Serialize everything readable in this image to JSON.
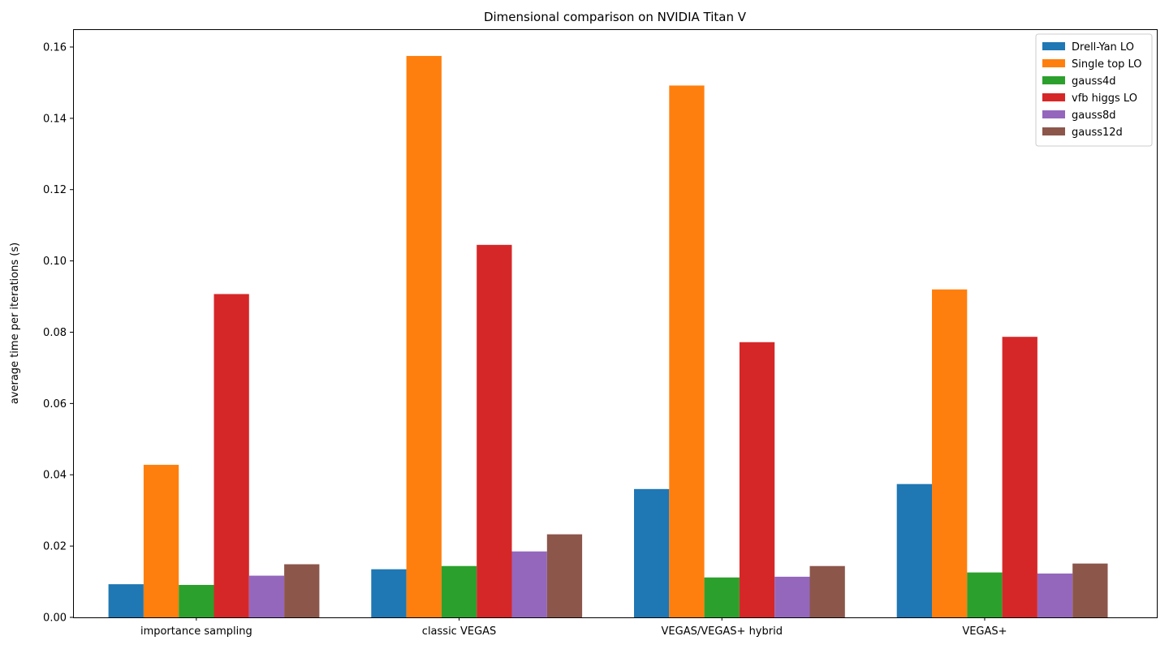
{
  "chart_data": {
    "type": "bar",
    "title": "Dimensional comparison on NVIDIA Titan V",
    "xlabel": "",
    "ylabel": "average time per iterations (s)",
    "ylim": [
      0,
      0.165
    ],
    "yticks": [
      "0.00",
      "0.02",
      "0.04",
      "0.06",
      "0.08",
      "0.10",
      "0.12",
      "0.14",
      "0.16"
    ],
    "categories": [
      "importance sampling",
      "classic VEGAS",
      "VEGAS/VEGAS+ hybrid",
      "VEGAS+"
    ],
    "series": [
      {
        "name": "Drell-Yan LO",
        "color": "#1f77b4",
        "values": [
          0.0093,
          0.0135,
          0.036,
          0.0374
        ]
      },
      {
        "name": "Single top LO",
        "color": "#ff7f0e",
        "values": [
          0.0428,
          0.1575,
          0.1492,
          0.092
        ]
      },
      {
        "name": "gauss4d",
        "color": "#2ca02c",
        "values": [
          0.0091,
          0.0144,
          0.0112,
          0.0126
        ]
      },
      {
        "name": "vfb higgs LO",
        "color": "#d62728",
        "values": [
          0.0907,
          0.1045,
          0.0772,
          0.0787
        ]
      },
      {
        "name": "gauss8d",
        "color": "#9467bd",
        "values": [
          0.0117,
          0.0185,
          0.0114,
          0.0123
        ]
      },
      {
        "name": "gauss12d",
        "color": "#8c564b",
        "values": [
          0.0149,
          0.0233,
          0.0144,
          0.0151
        ]
      }
    ],
    "legend_position": "top-right",
    "grid": false
  }
}
